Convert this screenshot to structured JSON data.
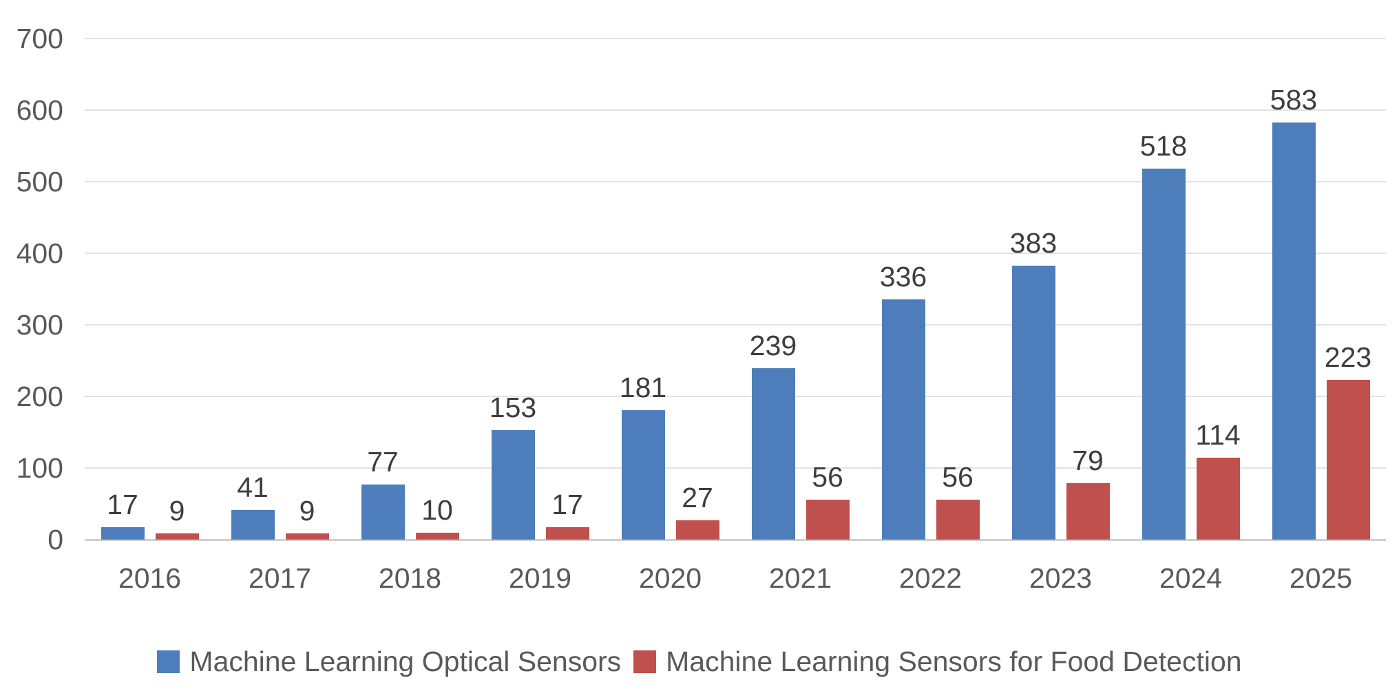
{
  "chart_data": {
    "type": "bar",
    "title": "",
    "xlabel": "",
    "ylabel": "",
    "categories": [
      "2016",
      "2017",
      "2018",
      "2019",
      "2020",
      "2021",
      "2022",
      "2023",
      "2024",
      "2025"
    ],
    "series": [
      {
        "key": "optical",
        "name": "Machine Learning Optical Sensors",
        "color": "#4d7ebb",
        "values": [
          17,
          41,
          77,
          153,
          181,
          239,
          336,
          383,
          518,
          583
        ]
      },
      {
        "key": "food",
        "name": "Machine Learning Sensors for Food Detection",
        "color": "#c0504d",
        "values": [
          9,
          9,
          10,
          17,
          27,
          56,
          56,
          79,
          114,
          223
        ]
      }
    ],
    "ylim": [
      0,
      700
    ],
    "yticks": [
      0,
      100,
      200,
      300,
      400,
      500,
      600,
      700
    ],
    "grid": true,
    "data_labels": true,
    "legend_position": "bottom"
  },
  "colors": {
    "background": "#ffffff",
    "gridline": "#e2e2e2",
    "axis_baseline": "#d0d0d0",
    "tick_text": "#595959",
    "data_label_text": "#3d3d3d"
  }
}
